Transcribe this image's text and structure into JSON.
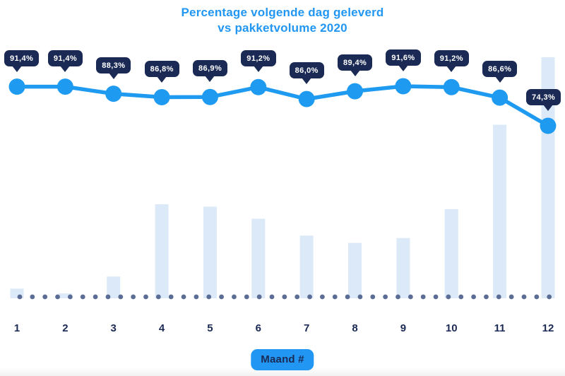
{
  "title": {
    "line1": "Percentage volgende dag geleverd",
    "line2": "vs pakketvolume 2020"
  },
  "x_axis": {
    "label_badge": "Maand #",
    "ticks": [
      "1",
      "2",
      "3",
      "4",
      "5",
      "6",
      "7",
      "8",
      "9",
      "10",
      "11",
      "12"
    ]
  },
  "chart_data": {
    "type": "line",
    "subtype": "line-with-volume-bars",
    "title": "Percentage volgende dag geleverd vs pakketvolume 2020",
    "categories": [
      "1",
      "2",
      "3",
      "4",
      "5",
      "6",
      "7",
      "8",
      "9",
      "10",
      "11",
      "12"
    ],
    "xlabel": "Maand #",
    "ylabel": "",
    "legend": "none",
    "grid": false,
    "baseline_style": "dotted",
    "series": [
      {
        "name": "Percentage volgende dag geleverd",
        "type": "line",
        "unit": "%",
        "values": [
          91.4,
          91.4,
          88.3,
          86.8,
          86.9,
          91.2,
          86.0,
          89.4,
          91.6,
          91.2,
          86.6,
          74.3
        ],
        "point_labels": [
          "91,4%",
          "91,4%",
          "88,3%",
          "86,8%",
          "86,9%",
          "91,2%",
          "86,0%",
          "89,4%",
          "91,6%",
          "91,2%",
          "86,6%",
          "74,3%"
        ]
      },
      {
        "name": "Pakketvolume 2020",
        "type": "bar",
        "unit": "relative volume index (no value axis shown, 100 = month 12)",
        "values": [
          4,
          2,
          9,
          39,
          38,
          33,
          26,
          23,
          25,
          37,
          72,
          100
        ]
      }
    ]
  },
  "colors": {
    "accent_blue": "#2196f3",
    "line_blue": "#1e9bf0",
    "tooltip_navy": "#1b2a55",
    "bar_fill": "#dbe9f8",
    "baseline_dot": "#5b6d94",
    "tooltip_text": "#ffffff"
  }
}
